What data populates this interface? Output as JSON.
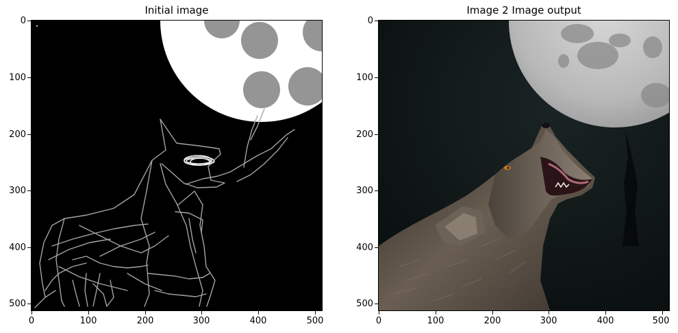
{
  "figure": {
    "panels": [
      {
        "title": "Initial image",
        "xticks": [
          "0",
          "100",
          "200",
          "300",
          "400",
          "500"
        ],
        "yticks": [
          "0",
          "100",
          "200",
          "300",
          "400",
          "500"
        ]
      },
      {
        "title": "Image 2 Image output",
        "xticks": [
          "0",
          "100",
          "200",
          "300",
          "400",
          "500"
        ],
        "yticks": [
          "0",
          "100",
          "200",
          "300",
          "400",
          "500"
        ]
      }
    ]
  },
  "colors": {
    "background": "#ffffff",
    "sketch_bg": "#000000",
    "moon_white": "#ffffff",
    "moon_crater": "#959595",
    "sketch_line": "#a8a8a8",
    "photo_sky": "#0e1616",
    "photo_moon": "#bdbdbd",
    "wolf_fur": "#5a4f45"
  }
}
